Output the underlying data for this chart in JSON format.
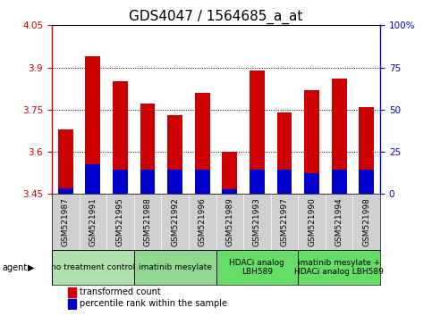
{
  "title": "GDS4047 / 1564685_a_at",
  "samples": [
    "GSM521987",
    "GSM521991",
    "GSM521995",
    "GSM521988",
    "GSM521992",
    "GSM521996",
    "GSM521989",
    "GSM521993",
    "GSM521997",
    "GSM521990",
    "GSM521994",
    "GSM521998"
  ],
  "transformed_count": [
    3.68,
    3.94,
    3.85,
    3.77,
    3.73,
    3.81,
    3.6,
    3.89,
    3.74,
    3.82,
    3.86,
    3.76
  ],
  "percentile_rank": [
    3.47,
    3.555,
    3.535,
    3.535,
    3.535,
    3.535,
    3.465,
    3.535,
    3.535,
    3.525,
    3.535,
    3.535
  ],
  "bar_bottom": 3.45,
  "ylim_left": [
    3.45,
    4.05
  ],
  "ylim_right": [
    0,
    100
  ],
  "yticks_left": [
    3.45,
    3.6,
    3.75,
    3.9,
    4.05
  ],
  "ytick_labels_left": [
    "3.45",
    "3.6",
    "3.75",
    "3.9",
    "4.05"
  ],
  "yticks_right": [
    0,
    25,
    50,
    75,
    100
  ],
  "ytick_labels_right": [
    "0",
    "25",
    "50",
    "75",
    "100%"
  ],
  "grid_lines": [
    3.6,
    3.75,
    3.9
  ],
  "groups": [
    {
      "label": "no treatment control",
      "start": 0,
      "end": 3,
      "color": "#b0e0b0"
    },
    {
      "label": "imatinib mesylate",
      "start": 3,
      "end": 6,
      "color": "#90d890"
    },
    {
      "label": "HDACi analog\nLBH589",
      "start": 6,
      "end": 9,
      "color": "#66dd66"
    },
    {
      "label": "imatinib mesylate +\nHDACi analog LBH589",
      "start": 9,
      "end": 12,
      "color": "#66dd66"
    }
  ],
  "bar_color_red": "#cc0000",
  "bar_color_blue": "#0000cc",
  "bar_width": 0.55,
  "title_fontsize": 11,
  "tick_fontsize": 7.5,
  "sample_label_fontsize": 6.5,
  "group_label_fontsize": 6.5,
  "legend_fontsize": 7,
  "axis_left_color": "#cc0000",
  "axis_right_color": "#0000cc",
  "sample_bg_color": "#d0d0d0",
  "plot_bg_color": "#ffffff"
}
